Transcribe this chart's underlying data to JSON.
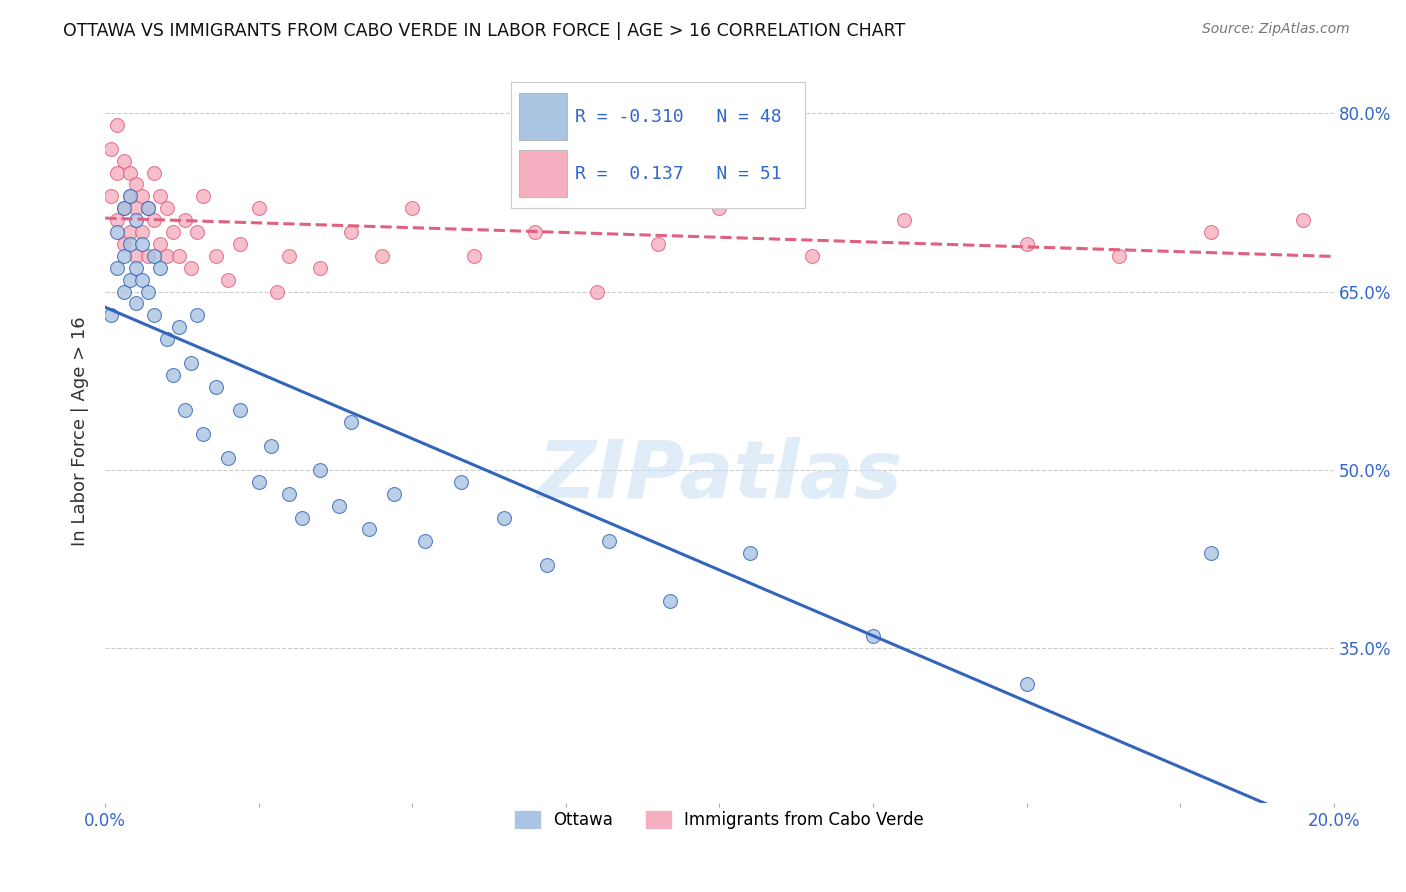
{
  "title": "OTTAWA VS IMMIGRANTS FROM CABO VERDE IN LABOR FORCE | AGE > 16 CORRELATION CHART",
  "source": "Source: ZipAtlas.com",
  "ylabel": "In Labor Force | Age > 16",
  "x_min": 0.0,
  "x_max": 0.2,
  "y_min": 0.22,
  "y_max": 0.845,
  "yticks": [
    0.35,
    0.5,
    0.65,
    0.8
  ],
  "ytick_labels": [
    "35.0%",
    "50.0%",
    "65.0%",
    "80.0%"
  ],
  "xticks": [
    0.0,
    0.025,
    0.05,
    0.075,
    0.1,
    0.125,
    0.15,
    0.175,
    0.2
  ],
  "xtick_labels_show": {
    "0.0": "0.0%",
    "0.2": "20.0%"
  },
  "legend_labels": [
    "Ottawa",
    "Immigrants from Cabo Verde"
  ],
  "blue_color": "#aac4e2",
  "pink_color": "#f5afc0",
  "blue_line_color": "#3366bb",
  "pink_line_color": "#e06080",
  "R_blue": -0.31,
  "N_blue": 48,
  "R_pink": 0.137,
  "N_pink": 51,
  "blue_scatter": {
    "x": [
      0.001,
      0.002,
      0.002,
      0.003,
      0.003,
      0.003,
      0.004,
      0.004,
      0.004,
      0.005,
      0.005,
      0.005,
      0.006,
      0.006,
      0.007,
      0.007,
      0.008,
      0.008,
      0.009,
      0.01,
      0.011,
      0.012,
      0.013,
      0.014,
      0.015,
      0.016,
      0.018,
      0.02,
      0.022,
      0.025,
      0.027,
      0.03,
      0.032,
      0.035,
      0.038,
      0.04,
      0.043,
      0.047,
      0.052,
      0.058,
      0.065,
      0.072,
      0.082,
      0.092,
      0.105,
      0.125,
      0.15,
      0.18
    ],
    "y": [
      0.63,
      0.7,
      0.67,
      0.72,
      0.68,
      0.65,
      0.73,
      0.69,
      0.66,
      0.71,
      0.67,
      0.64,
      0.69,
      0.66,
      0.72,
      0.65,
      0.68,
      0.63,
      0.67,
      0.61,
      0.58,
      0.62,
      0.55,
      0.59,
      0.63,
      0.53,
      0.57,
      0.51,
      0.55,
      0.49,
      0.52,
      0.48,
      0.46,
      0.5,
      0.47,
      0.54,
      0.45,
      0.48,
      0.44,
      0.49,
      0.46,
      0.42,
      0.44,
      0.39,
      0.43,
      0.36,
      0.32,
      0.43
    ]
  },
  "pink_scatter": {
    "x": [
      0.001,
      0.001,
      0.002,
      0.002,
      0.002,
      0.003,
      0.003,
      0.003,
      0.004,
      0.004,
      0.004,
      0.005,
      0.005,
      0.005,
      0.006,
      0.006,
      0.007,
      0.007,
      0.008,
      0.008,
      0.009,
      0.009,
      0.01,
      0.01,
      0.011,
      0.012,
      0.013,
      0.014,
      0.015,
      0.016,
      0.018,
      0.02,
      0.022,
      0.025,
      0.028,
      0.03,
      0.035,
      0.04,
      0.045,
      0.05,
      0.06,
      0.07,
      0.08,
      0.09,
      0.1,
      0.115,
      0.13,
      0.15,
      0.165,
      0.18,
      0.195
    ],
    "y": [
      0.77,
      0.73,
      0.75,
      0.79,
      0.71,
      0.76,
      0.72,
      0.69,
      0.75,
      0.73,
      0.7,
      0.74,
      0.72,
      0.68,
      0.73,
      0.7,
      0.72,
      0.68,
      0.71,
      0.75,
      0.69,
      0.73,
      0.68,
      0.72,
      0.7,
      0.68,
      0.71,
      0.67,
      0.7,
      0.73,
      0.68,
      0.66,
      0.69,
      0.72,
      0.65,
      0.68,
      0.67,
      0.7,
      0.68,
      0.72,
      0.68,
      0.7,
      0.65,
      0.69,
      0.72,
      0.68,
      0.71,
      0.69,
      0.68,
      0.7,
      0.71
    ]
  },
  "watermark": "ZIPatlas",
  "background_color": "#ffffff",
  "grid_color": "#cccccc",
  "title_color": "#111111",
  "axis_color": "#3366cc",
  "legend_value_color": "#3366cc"
}
